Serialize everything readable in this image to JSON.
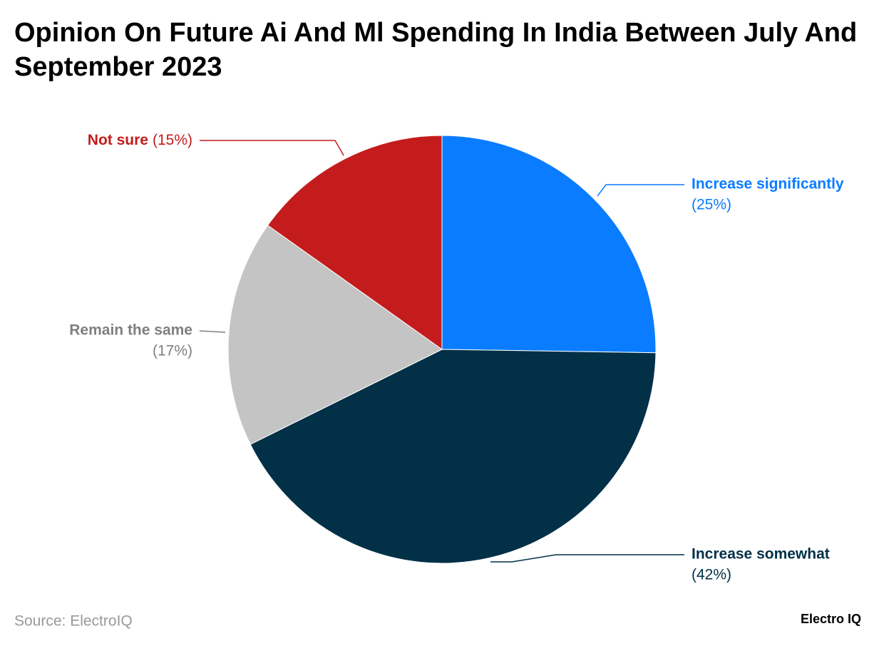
{
  "chart_data": {
    "type": "pie",
    "title": "Opinion On Future Ai And Ml Spending In India Between July And September 2023",
    "categories": [
      "Increase significantly",
      "Increase somewhat",
      "Remain the same",
      "Not sure"
    ],
    "values": [
      25,
      42,
      17,
      15
    ],
    "value_labels": [
      "(25%)",
      "(42%)",
      "(17%)",
      "(15%)"
    ],
    "colors": [
      "#0a7cff",
      "#023047",
      "#c4c4c4",
      "#c41c1c"
    ],
    "label_colors": [
      "#0a7cff",
      "#023047",
      "#7f7f7f",
      "#c41c1c"
    ],
    "source": "Source: ElectroIQ",
    "logo": "Electro IQ"
  }
}
